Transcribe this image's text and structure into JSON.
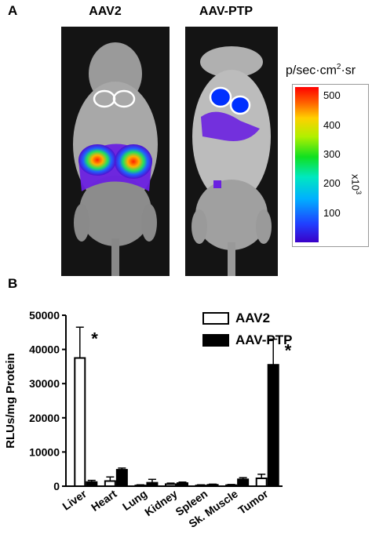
{
  "panel_a": {
    "label": "A",
    "left_title": "AAV2",
    "right_title": "AAV-PTP",
    "colorbar": {
      "unit_main": "p/sec·cm",
      "unit_sup": "2",
      "unit_tail": "·sr",
      "ticks": [
        "500",
        "400",
        "300",
        "200",
        "100"
      ],
      "scale_base": "x10",
      "scale_exp": "3"
    }
  },
  "panel_b": {
    "label": "B"
  },
  "chart_data": {
    "type": "bar",
    "categories": [
      "Liver",
      "Heart",
      "Lung",
      "Kidney",
      "Spleen",
      "Sk. Muscle",
      "Tumor"
    ],
    "series": [
      {
        "name": "AAV2",
        "values": [
          37500,
          1500,
          200,
          600,
          200,
          300,
          2300
        ],
        "errors": [
          9000,
          1200,
          200,
          300,
          200,
          200,
          1200
        ],
        "fill": "#ffffff"
      },
      {
        "name": "AAV-PTP",
        "values": [
          1200,
          4800,
          1000,
          900,
          400,
          2000,
          35500
        ],
        "errors": [
          500,
          500,
          1000,
          300,
          200,
          500,
          7500
        ],
        "fill": "#000000"
      }
    ],
    "ylabel": "RLUs/mg Protein",
    "ylim": [
      0,
      50000
    ],
    "yticks": [
      "0",
      "10000",
      "20000",
      "30000",
      "40000",
      "50000"
    ],
    "significance": [
      {
        "category": "Liver",
        "series": "AAV2",
        "mark": "*"
      },
      {
        "category": "Tumor",
        "series": "AAV-PTP",
        "mark": "*"
      }
    ],
    "legend": "top-right",
    "grid": false
  }
}
